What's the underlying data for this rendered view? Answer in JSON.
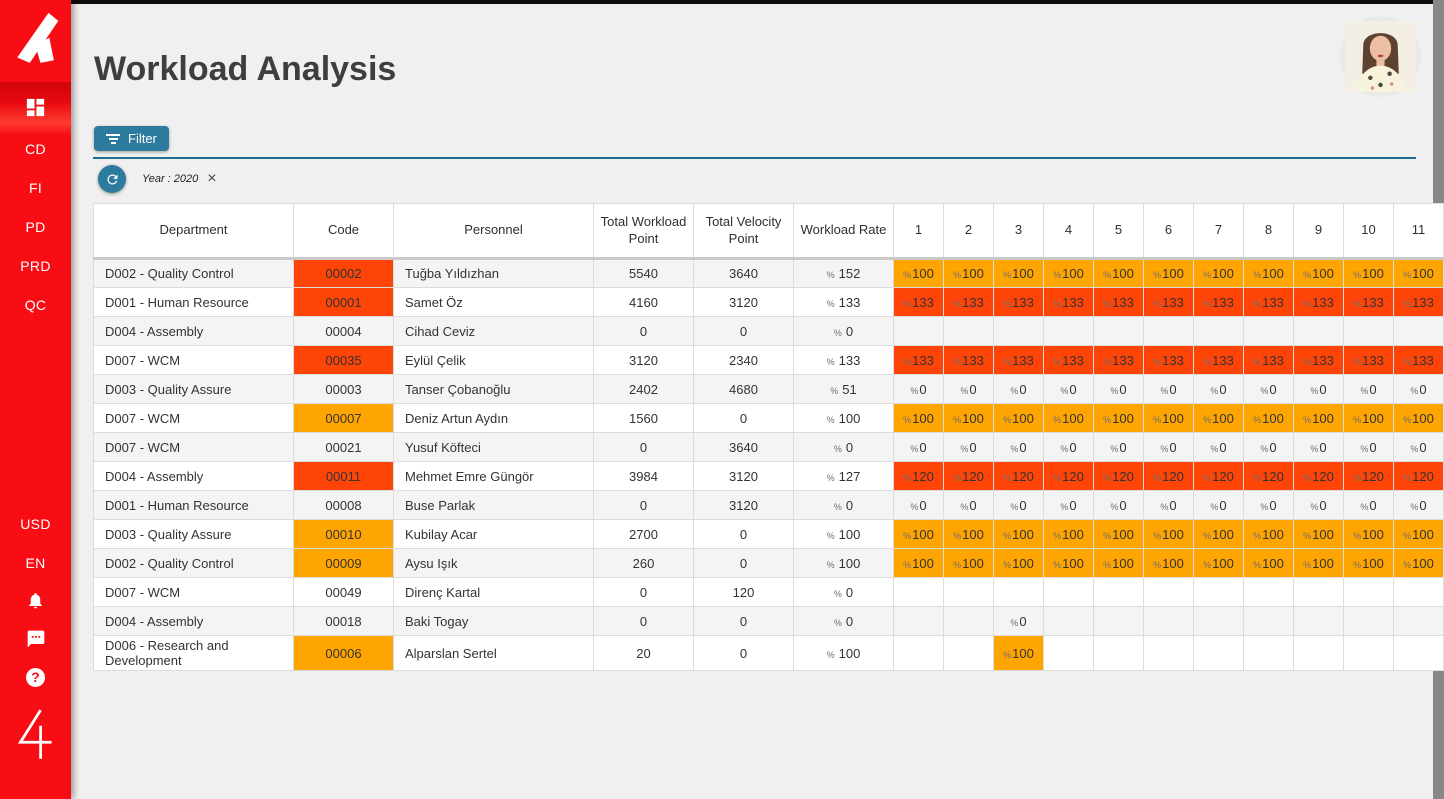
{
  "app": {
    "title": "Workload Analysis"
  },
  "sidebar": {
    "nav_items": [
      "CD",
      "FI",
      "PD",
      "PRD",
      "QC"
    ],
    "settings_items": [
      "USD",
      "EN"
    ],
    "help_symbol": "?",
    "footer_logo_text": "4"
  },
  "toolbar": {
    "filter_label": "Filter",
    "filter_chip": "Year : 2020",
    "close_symbol": "×"
  },
  "colors": {
    "sidebar_red": "#f80d15",
    "accent_blue": "#2c7b9e",
    "divider_blue": "#1d6e92",
    "cell_orange": "#ffa502",
    "cell_red": "#ff4408"
  },
  "table": {
    "headers": [
      "Department",
      "Code",
      "Personnel",
      "Total Workload Point",
      "Total Velocity Point",
      "Workload Rate"
    ],
    "month_headers": [
      "1",
      "2",
      "3",
      "4",
      "5",
      "6",
      "7",
      "8",
      "9",
      "10",
      "11"
    ],
    "percent_symbol": "%",
    "rows": [
      {
        "department": "D002 - Quality Control",
        "code": "00002",
        "code_bg": "red",
        "personnel": "Tuğba Yıldızhan",
        "total_workload_point": "5540",
        "total_velocity_point": "3640",
        "workload_rate": "152",
        "months": [
          {
            "v": "100",
            "bg": "orange"
          },
          {
            "v": "100",
            "bg": "orange"
          },
          {
            "v": "100",
            "bg": "orange"
          },
          {
            "v": "100",
            "bg": "orange"
          },
          {
            "v": "100",
            "bg": "orange"
          },
          {
            "v": "100",
            "bg": "orange"
          },
          {
            "v": "100",
            "bg": "orange"
          },
          {
            "v": "100",
            "bg": "orange"
          },
          {
            "v": "100",
            "bg": "orange"
          },
          {
            "v": "100",
            "bg": "orange"
          },
          {
            "v": "100",
            "bg": "orange"
          }
        ]
      },
      {
        "department": "D001 - Human Resource",
        "code": "00001",
        "code_bg": "red",
        "personnel": "Samet Öz",
        "total_workload_point": "4160",
        "total_velocity_point": "3120",
        "workload_rate": "133",
        "months": [
          {
            "v": "133",
            "bg": "red"
          },
          {
            "v": "133",
            "bg": "red"
          },
          {
            "v": "133",
            "bg": "red"
          },
          {
            "v": "133",
            "bg": "red"
          },
          {
            "v": "133",
            "bg": "red"
          },
          {
            "v": "133",
            "bg": "red"
          },
          {
            "v": "133",
            "bg": "red"
          },
          {
            "v": "133",
            "bg": "red"
          },
          {
            "v": "133",
            "bg": "red"
          },
          {
            "v": "133",
            "bg": "red"
          },
          {
            "v": "133",
            "bg": "red"
          }
        ]
      },
      {
        "department": "D004 - Assembly",
        "code": "00004",
        "code_bg": "",
        "personnel": "Cihad Ceviz",
        "total_workload_point": "0",
        "total_velocity_point": "0",
        "workload_rate": "0",
        "months": [
          null,
          null,
          null,
          null,
          null,
          null,
          null,
          null,
          null,
          null,
          null
        ]
      },
      {
        "department": "D007 - WCM",
        "code": "00035",
        "code_bg": "red",
        "personnel": "Eylül Çelik",
        "total_workload_point": "3120",
        "total_velocity_point": "2340",
        "workload_rate": "133",
        "months": [
          {
            "v": "133",
            "bg": "red"
          },
          {
            "v": "133",
            "bg": "red"
          },
          {
            "v": "133",
            "bg": "red"
          },
          {
            "v": "133",
            "bg": "red"
          },
          {
            "v": "133",
            "bg": "red"
          },
          {
            "v": "133",
            "bg": "red"
          },
          {
            "v": "133",
            "bg": "red"
          },
          {
            "v": "133",
            "bg": "red"
          },
          {
            "v": "133",
            "bg": "red"
          },
          {
            "v": "133",
            "bg": "red"
          },
          {
            "v": "133",
            "bg": "red"
          }
        ]
      },
      {
        "department": "D003 - Quality Assure",
        "code": "00003",
        "code_bg": "",
        "personnel": "Tanser Çobanoğlu",
        "total_workload_point": "2402",
        "total_velocity_point": "4680",
        "workload_rate": "51",
        "months": [
          {
            "v": "0",
            "bg": ""
          },
          {
            "v": "0",
            "bg": ""
          },
          {
            "v": "0",
            "bg": ""
          },
          {
            "v": "0",
            "bg": ""
          },
          {
            "v": "0",
            "bg": ""
          },
          {
            "v": "0",
            "bg": ""
          },
          {
            "v": "0",
            "bg": ""
          },
          {
            "v": "0",
            "bg": ""
          },
          {
            "v": "0",
            "bg": ""
          },
          {
            "v": "0",
            "bg": ""
          },
          {
            "v": "0",
            "bg": ""
          }
        ]
      },
      {
        "department": "D007 - WCM",
        "code": "00007",
        "code_bg": "orange",
        "personnel": "Deniz Artun Aydın",
        "total_workload_point": "1560",
        "total_velocity_point": "0",
        "workload_rate": "100",
        "months": [
          {
            "v": "100",
            "bg": "orange"
          },
          {
            "v": "100",
            "bg": "orange"
          },
          {
            "v": "100",
            "bg": "orange"
          },
          {
            "v": "100",
            "bg": "orange"
          },
          {
            "v": "100",
            "bg": "orange"
          },
          {
            "v": "100",
            "bg": "orange"
          },
          {
            "v": "100",
            "bg": "orange"
          },
          {
            "v": "100",
            "bg": "orange"
          },
          {
            "v": "100",
            "bg": "orange"
          },
          {
            "v": "100",
            "bg": "orange"
          },
          {
            "v": "100",
            "bg": "orange"
          }
        ]
      },
      {
        "department": "D007 - WCM",
        "code": "00021",
        "code_bg": "",
        "personnel": "Yusuf Köfteci",
        "total_workload_point": "0",
        "total_velocity_point": "3640",
        "workload_rate": "0",
        "months": [
          {
            "v": "0",
            "bg": ""
          },
          {
            "v": "0",
            "bg": ""
          },
          {
            "v": "0",
            "bg": ""
          },
          {
            "v": "0",
            "bg": ""
          },
          {
            "v": "0",
            "bg": ""
          },
          {
            "v": "0",
            "bg": ""
          },
          {
            "v": "0",
            "bg": ""
          },
          {
            "v": "0",
            "bg": ""
          },
          {
            "v": "0",
            "bg": ""
          },
          {
            "v": "0",
            "bg": ""
          },
          {
            "v": "0",
            "bg": ""
          }
        ]
      },
      {
        "department": "D004 - Assembly",
        "code": "00011",
        "code_bg": "red",
        "personnel": "Mehmet Emre Güngör",
        "total_workload_point": "3984",
        "total_velocity_point": "3120",
        "workload_rate": "127",
        "months": [
          {
            "v": "120",
            "bg": "red"
          },
          {
            "v": "120",
            "bg": "red"
          },
          {
            "v": "120",
            "bg": "red"
          },
          {
            "v": "120",
            "bg": "red"
          },
          {
            "v": "120",
            "bg": "red"
          },
          {
            "v": "120",
            "bg": "red"
          },
          {
            "v": "120",
            "bg": "red"
          },
          {
            "v": "120",
            "bg": "red"
          },
          {
            "v": "120",
            "bg": "red"
          },
          {
            "v": "120",
            "bg": "red"
          },
          {
            "v": "120",
            "bg": "red"
          }
        ]
      },
      {
        "department": "D001 - Human Resource",
        "code": "00008",
        "code_bg": "",
        "personnel": "Buse Parlak",
        "total_workload_point": "0",
        "total_velocity_point": "3120",
        "workload_rate": "0",
        "months": [
          {
            "v": "0",
            "bg": ""
          },
          {
            "v": "0",
            "bg": ""
          },
          {
            "v": "0",
            "bg": ""
          },
          {
            "v": "0",
            "bg": ""
          },
          {
            "v": "0",
            "bg": ""
          },
          {
            "v": "0",
            "bg": ""
          },
          {
            "v": "0",
            "bg": ""
          },
          {
            "v": "0",
            "bg": ""
          },
          {
            "v": "0",
            "bg": ""
          },
          {
            "v": "0",
            "bg": ""
          },
          {
            "v": "0",
            "bg": ""
          }
        ]
      },
      {
        "department": "D003 - Quality Assure",
        "code": "00010",
        "code_bg": "orange",
        "personnel": "Kubilay Acar",
        "total_workload_point": "2700",
        "total_velocity_point": "0",
        "workload_rate": "100",
        "months": [
          {
            "v": "100",
            "bg": "orange"
          },
          {
            "v": "100",
            "bg": "orange"
          },
          {
            "v": "100",
            "bg": "orange"
          },
          {
            "v": "100",
            "bg": "orange"
          },
          {
            "v": "100",
            "bg": "orange"
          },
          {
            "v": "100",
            "bg": "orange"
          },
          {
            "v": "100",
            "bg": "orange"
          },
          {
            "v": "100",
            "bg": "orange"
          },
          {
            "v": "100",
            "bg": "orange"
          },
          {
            "v": "100",
            "bg": "orange"
          },
          {
            "v": "100",
            "bg": "orange"
          }
        ]
      },
      {
        "department": "D002 - Quality Control",
        "code": "00009",
        "code_bg": "orange",
        "personnel": "Aysu Işık",
        "total_workload_point": "260",
        "total_velocity_point": "0",
        "workload_rate": "100",
        "months": [
          {
            "v": "100",
            "bg": "orange"
          },
          {
            "v": "100",
            "bg": "orange"
          },
          {
            "v": "100",
            "bg": "orange"
          },
          {
            "v": "100",
            "bg": "orange"
          },
          {
            "v": "100",
            "bg": "orange"
          },
          {
            "v": "100",
            "bg": "orange"
          },
          {
            "v": "100",
            "bg": "orange"
          },
          {
            "v": "100",
            "bg": "orange"
          },
          {
            "v": "100",
            "bg": "orange"
          },
          {
            "v": "100",
            "bg": "orange"
          },
          {
            "v": "100",
            "bg": "orange"
          }
        ]
      },
      {
        "department": "D007 - WCM",
        "code": "00049",
        "code_bg": "",
        "personnel": "Direnç Kartal",
        "total_workload_point": "0",
        "total_velocity_point": "120",
        "workload_rate": "0",
        "months": [
          null,
          null,
          null,
          null,
          null,
          null,
          null,
          null,
          null,
          null,
          null
        ]
      },
      {
        "department": "D004 - Assembly",
        "code": "00018",
        "code_bg": "",
        "personnel": "Baki Togay",
        "total_workload_point": "0",
        "total_velocity_point": "0",
        "workload_rate": "0",
        "months": [
          null,
          null,
          {
            "v": "0",
            "bg": ""
          },
          null,
          null,
          null,
          null,
          null,
          null,
          null,
          null
        ]
      },
      {
        "department": "D006 - Research and Development",
        "code": "00006",
        "code_bg": "orange",
        "personnel": "Alparslan Sertel",
        "total_workload_point": "20",
        "total_velocity_point": "0",
        "workload_rate": "100",
        "months": [
          null,
          null,
          {
            "v": "100",
            "bg": "orange"
          },
          null,
          null,
          null,
          null,
          null,
          null,
          null,
          null
        ]
      }
    ]
  }
}
